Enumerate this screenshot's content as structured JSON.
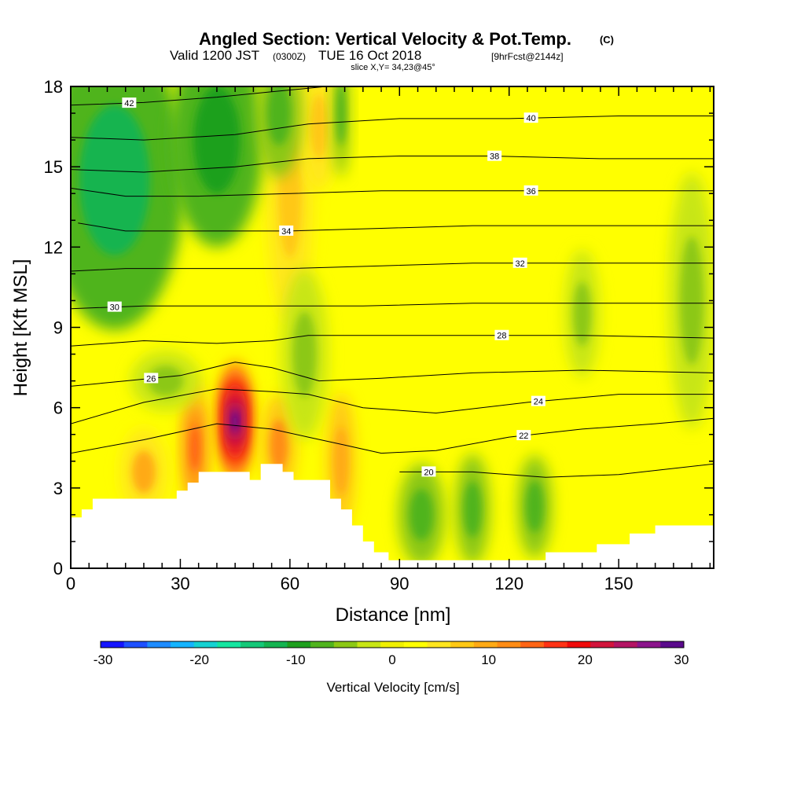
{
  "header": {
    "title": "Angled Section: Vertical Velocity & Pot.Temp.",
    "title_unit": "(C)",
    "valid_prefix": "Valid 1200 JST",
    "valid_z": "(0300Z)",
    "valid_date": "TUE 16 Oct 2018",
    "forecast": "[9hrFcst@2144z]",
    "slice": "slice X,Y= 34,23@45°"
  },
  "chart_data": {
    "type": "heatmap",
    "xlabel": "Distance [nm]",
    "ylabel": "Height [Kft MSL]",
    "xlim": [
      0,
      176
    ],
    "ylim": [
      0,
      18
    ],
    "x_ticks": [
      0,
      30,
      60,
      90,
      120,
      150
    ],
    "y_ticks": [
      0,
      3,
      6,
      9,
      12,
      15,
      18
    ],
    "terrain_kft": [
      [
        0,
        1.9
      ],
      [
        3,
        1.9
      ],
      [
        3,
        2.2
      ],
      [
        6,
        2.2
      ],
      [
        6,
        2.6
      ],
      [
        29,
        2.6
      ],
      [
        29,
        2.9
      ],
      [
        32,
        2.9
      ],
      [
        32,
        3.2
      ],
      [
        35,
        3.2
      ],
      [
        35,
        3.6
      ],
      [
        49,
        3.6
      ],
      [
        49,
        3.3
      ],
      [
        52,
        3.3
      ],
      [
        52,
        3.9
      ],
      [
        58,
        3.9
      ],
      [
        58,
        3.6
      ],
      [
        61,
        3.6
      ],
      [
        61,
        3.3
      ],
      [
        71,
        3.3
      ],
      [
        71,
        2.6
      ],
      [
        74,
        2.6
      ],
      [
        74,
        2.2
      ],
      [
        77,
        2.2
      ],
      [
        77,
        1.6
      ],
      [
        80,
        1.6
      ],
      [
        80,
        1.0
      ],
      [
        83,
        1.0
      ],
      [
        83,
        0.6
      ],
      [
        87,
        0.6
      ],
      [
        87,
        0.3
      ],
      [
        130,
        0.3
      ],
      [
        130,
        0.6
      ],
      [
        144,
        0.6
      ],
      [
        144,
        0.9
      ],
      [
        153,
        0.9
      ],
      [
        153,
        1.3
      ],
      [
        160,
        1.3
      ],
      [
        160,
        1.6
      ],
      [
        176,
        1.6
      ]
    ],
    "theta_contours": [
      {
        "label": "20",
        "points": [
          [
            90,
            3.6
          ],
          [
            110,
            3.6
          ],
          [
            130,
            3.4
          ],
          [
            150,
            3.5
          ],
          [
            176,
            3.9
          ]
        ],
        "label_x": 98
      },
      {
        "label": "22",
        "points": [
          [
            0,
            4.3
          ],
          [
            20,
            4.8
          ],
          [
            40,
            5.4
          ],
          [
            55,
            5.2
          ],
          [
            65,
            4.9
          ],
          [
            75,
            4.6
          ],
          [
            85,
            4.3
          ],
          [
            100,
            4.4
          ],
          [
            120,
            4.9
          ],
          [
            140,
            5.2
          ],
          [
            160,
            5.4
          ],
          [
            176,
            5.6
          ]
        ],
        "label_x": 124
      },
      {
        "label": "24",
        "points": [
          [
            0,
            5.4
          ],
          [
            20,
            6.2
          ],
          [
            40,
            6.7
          ],
          [
            55,
            6.6
          ],
          [
            65,
            6.5
          ],
          [
            80,
            6.0
          ],
          [
            100,
            5.8
          ],
          [
            125,
            6.2
          ],
          [
            150,
            6.5
          ],
          [
            176,
            6.5
          ]
        ],
        "label_x": 128
      },
      {
        "label": "26",
        "points": [
          [
            0,
            6.8
          ],
          [
            15,
            7.0
          ],
          [
            30,
            7.2
          ],
          [
            45,
            7.7
          ],
          [
            55,
            7.5
          ],
          [
            68,
            7.0
          ],
          [
            85,
            7.1
          ],
          [
            110,
            7.3
          ],
          [
            140,
            7.4
          ],
          [
            176,
            7.3
          ]
        ],
        "label_x": 22
      },
      {
        "label": "28",
        "points": [
          [
            0,
            8.3
          ],
          [
            20,
            8.5
          ],
          [
            40,
            8.4
          ],
          [
            55,
            8.5
          ],
          [
            65,
            8.7
          ],
          [
            85,
            8.7
          ],
          [
            110,
            8.7
          ],
          [
            140,
            8.7
          ],
          [
            176,
            8.6
          ]
        ],
        "label_x": 118
      },
      {
        "label": "30",
        "points": [
          [
            0,
            9.7
          ],
          [
            20,
            9.8
          ],
          [
            40,
            9.8
          ],
          [
            60,
            9.8
          ],
          [
            80,
            9.8
          ],
          [
            110,
            9.9
          ],
          [
            140,
            9.9
          ],
          [
            176,
            9.9
          ]
        ],
        "label_x": 12
      },
      {
        "label": "32",
        "points": [
          [
            0,
            11.1
          ],
          [
            15,
            11.2
          ],
          [
            35,
            11.2
          ],
          [
            60,
            11.2
          ],
          [
            85,
            11.3
          ],
          [
            110,
            11.4
          ],
          [
            140,
            11.4
          ],
          [
            176,
            11.4
          ]
        ],
        "label_x": 123
      },
      {
        "label": "34",
        "points": [
          [
            2,
            12.9
          ],
          [
            15,
            12.6
          ],
          [
            35,
            12.6
          ],
          [
            60,
            12.6
          ],
          [
            85,
            12.7
          ],
          [
            110,
            12.8
          ],
          [
            140,
            12.8
          ],
          [
            176,
            12.8
          ]
        ],
        "label_x": 59
      },
      {
        "label": "36",
        "points": [
          [
            0,
            14.2
          ],
          [
            15,
            13.9
          ],
          [
            35,
            13.9
          ],
          [
            60,
            14.0
          ],
          [
            85,
            14.1
          ],
          [
            110,
            14.1
          ],
          [
            140,
            14.1
          ],
          [
            176,
            14.1
          ]
        ],
        "label_x": 126
      },
      {
        "label": "38",
        "points": [
          [
            0,
            14.9
          ],
          [
            20,
            14.8
          ],
          [
            45,
            15.0
          ],
          [
            65,
            15.3
          ],
          [
            90,
            15.4
          ],
          [
            115,
            15.4
          ],
          [
            145,
            15.3
          ],
          [
            176,
            15.3
          ]
        ],
        "label_x": 116
      },
      {
        "label": "40",
        "points": [
          [
            0,
            16.1
          ],
          [
            20,
            16.0
          ],
          [
            45,
            16.2
          ],
          [
            65,
            16.6
          ],
          [
            90,
            16.8
          ],
          [
            120,
            16.8
          ],
          [
            150,
            16.9
          ],
          [
            176,
            16.9
          ]
        ],
        "label_x": 126
      },
      {
        "label": "42",
        "points": [
          [
            0,
            17.3
          ],
          [
            20,
            17.4
          ],
          [
            40,
            17.6
          ],
          [
            55,
            17.8
          ],
          [
            70,
            18.0
          ]
        ],
        "label_x": 16
      }
    ],
    "velocity_features": [
      {
        "x": 45,
        "y": 5.5,
        "value": 30,
        "rx": 3,
        "ry": 1.4
      },
      {
        "x": 34,
        "y": 4.5,
        "value": 15,
        "rx": 2.5,
        "ry": 1.6
      },
      {
        "x": 57,
        "y": 4.6,
        "value": 12,
        "rx": 3,
        "ry": 1.2
      },
      {
        "x": 74,
        "y": 4.0,
        "value": 10,
        "rx": 2.5,
        "ry": 1.6
      },
      {
        "x": 60,
        "y": 14.0,
        "value": 8,
        "rx": 4,
        "ry": 3
      },
      {
        "x": 68,
        "y": 16.5,
        "value": 7,
        "rx": 3,
        "ry": 1.5
      },
      {
        "x": 20,
        "y": 3.6,
        "value": 9,
        "rx": 4,
        "ry": 1.0
      },
      {
        "x": 14,
        "y": 11.8,
        "value": 5,
        "rx": 6,
        "ry": 0.8
      },
      {
        "x": 12,
        "y": 14.5,
        "value": -12,
        "rx": 12,
        "ry": 3.5
      },
      {
        "x": 40,
        "y": 16,
        "value": -10,
        "rx": 8,
        "ry": 2.5
      },
      {
        "x": 57,
        "y": 17,
        "value": -8,
        "rx": 4,
        "ry": 1.5
      },
      {
        "x": 74,
        "y": 17,
        "value": -8,
        "rx": 1.5,
        "ry": 1.5
      },
      {
        "x": 96,
        "y": 2.0,
        "value": -8,
        "rx": 4,
        "ry": 1.2
      },
      {
        "x": 110,
        "y": 2.2,
        "value": -8,
        "rx": 3,
        "ry": 1.3
      },
      {
        "x": 127,
        "y": 2.3,
        "value": -8,
        "rx": 3,
        "ry": 1.2
      },
      {
        "x": 140,
        "y": 9.5,
        "value": -4,
        "rx": 3,
        "ry": 1.5
      },
      {
        "x": 170,
        "y": 10,
        "value": -5,
        "rx": 4,
        "ry": 3
      },
      {
        "x": 64,
        "y": 8,
        "value": -5,
        "rx": 4,
        "ry": 2
      },
      {
        "x": 26,
        "y": 7,
        "value": -5,
        "rx": 6,
        "ry": 0.7
      }
    ],
    "colorbar": {
      "label": "Vertical Velocity [cm/s]",
      "ticks": [
        "-30",
        "-20",
        "-10",
        "0",
        "10",
        "20",
        "30"
      ],
      "colors": [
        "#1414ff",
        "#1e50ff",
        "#1e8cff",
        "#14b4ff",
        "#14d2d2",
        "#14e6a0",
        "#14c878",
        "#14b450",
        "#1ea01e",
        "#50b41e",
        "#8cc814",
        "#c8e614",
        "#f0f000",
        "#ffff00",
        "#ffe61e",
        "#ffc814",
        "#ffaa14",
        "#ff8c14",
        "#ff6414",
        "#ff3214",
        "#f00a0a",
        "#d2143c",
        "#b41464",
        "#8c148c",
        "#5a0a8c"
      ]
    }
  }
}
